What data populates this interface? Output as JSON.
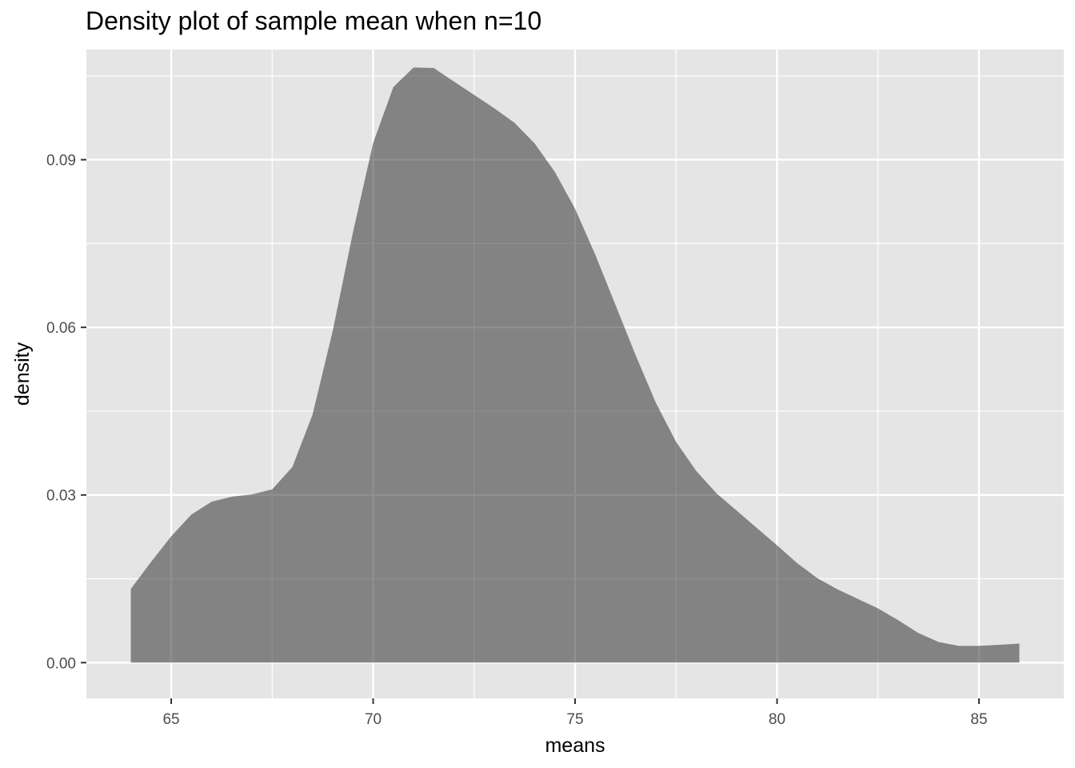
{
  "chart_data": {
    "type": "area",
    "title": "Density plot of sample mean when n=10",
    "xlabel": "means",
    "ylabel": "density",
    "xlim": [
      62.9,
      87.1
    ],
    "ylim": [
      -0.0064,
      0.1097
    ],
    "x_ticks": [
      65,
      70,
      75,
      80,
      85
    ],
    "x_tick_labels": [
      "65",
      "70",
      "75",
      "80",
      "85"
    ],
    "y_ticks": [
      0.0,
      0.03,
      0.06,
      0.09
    ],
    "y_tick_labels": [
      "0.00",
      "0.03",
      "0.06",
      "0.09"
    ],
    "grid": true,
    "panel_background": "#e5e5e5",
    "grid_color": "#ffffff",
    "fill_color": "#8a8a8a",
    "series": [
      {
        "x": [
          64.0,
          64.5,
          65.0,
          65.5,
          66.0,
          66.5,
          67.0,
          67.5,
          68.0,
          68.5,
          69.0,
          69.5,
          70.0,
          70.5,
          71.0,
          71.5,
          72.0,
          72.5,
          73.0,
          73.5,
          74.0,
          74.5,
          75.0,
          75.5,
          76.0,
          76.5,
          77.0,
          77.5,
          78.0,
          78.5,
          79.0,
          79.5,
          80.0,
          80.5,
          81.0,
          81.5,
          82.0,
          82.5,
          83.0,
          83.5,
          84.0,
          84.5,
          85.0,
          85.5,
          86.0
        ],
        "y": [
          0.0132,
          0.018,
          0.0226,
          0.0265,
          0.0288,
          0.0297,
          0.0301,
          0.031,
          0.035,
          0.0444,
          0.0594,
          0.077,
          0.093,
          0.103,
          0.1065,
          0.1064,
          0.104,
          0.1016,
          0.0992,
          0.0966,
          0.0929,
          0.0878,
          0.0812,
          0.073,
          0.064,
          0.055,
          0.0465,
          0.0395,
          0.0343,
          0.0303,
          0.0272,
          0.0241,
          0.021,
          0.0178,
          0.0151,
          0.0131,
          0.0114,
          0.0097,
          0.0076,
          0.0053,
          0.0037,
          0.003,
          0.003,
          0.0032,
          0.0034
        ]
      }
    ]
  }
}
